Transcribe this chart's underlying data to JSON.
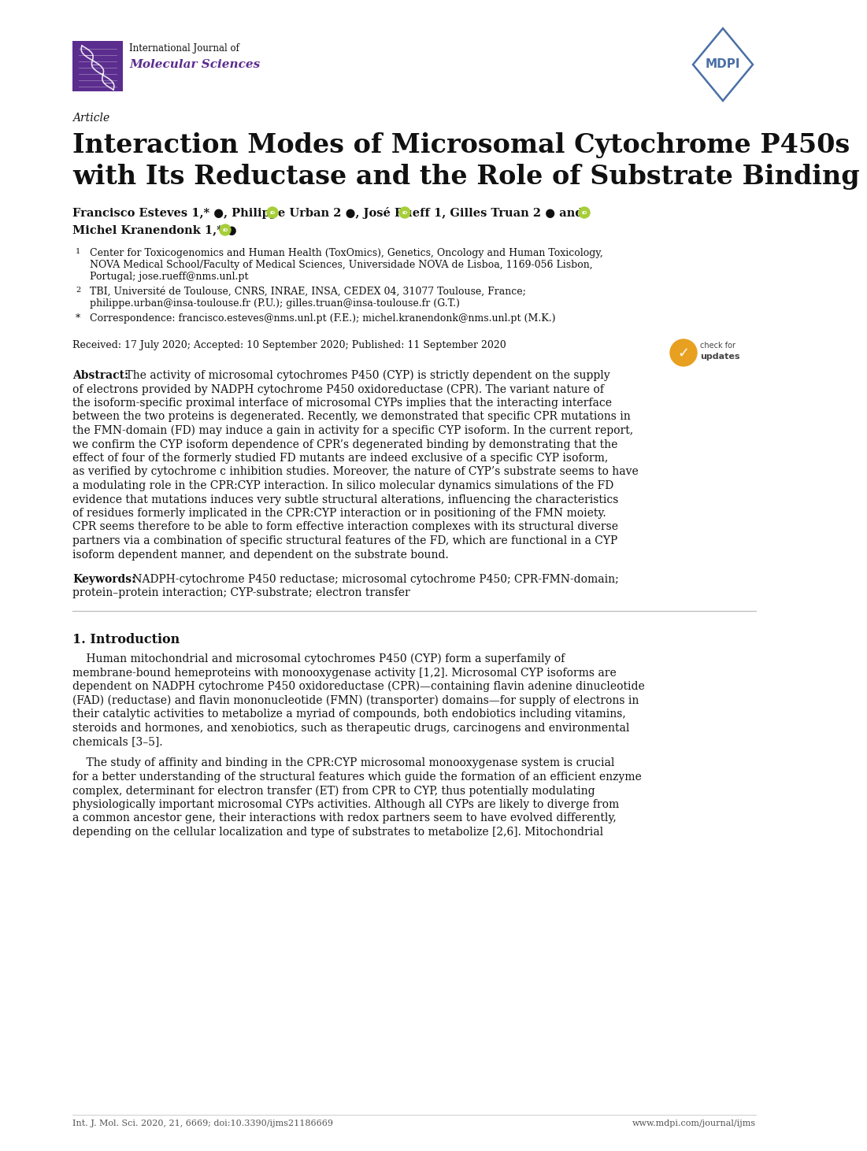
{
  "bg_color": "#ffffff",
  "page_width": 10.2,
  "page_height": 14.42,
  "journal_name_line1": "International Journal of",
  "journal_name_line2": "Molecular Sciences",
  "article_label": "Article",
  "title_line1": "Interaction Modes of Microsomal Cytochrome P450s",
  "title_line2": "with Its Reductase and the Role of Substrate Binding",
  "authors_line1": "Francisco Esteves 1,* ●, Philippe Urban 2 ●, José Rueff 1, Gilles Truan 2 ● and",
  "authors_line2": "Michel Kranendonk 1,* ●",
  "aff1_line1": "Center for Toxicogenomics and Human Health (ToxOmics), Genetics, Oncology and Human Toxicology,",
  "aff1_line2": "NOVA Medical School/Faculty of Medical Sciences, Universidade NOVA de Lisboa, 1169-056 Lisbon,",
  "aff1_line3": "Portugal; jose.rueff@nms.unl.pt",
  "aff2_line1": "TBI, Université de Toulouse, CNRS, INRAE, INSA, CEDEX 04, 31077 Toulouse, France;",
  "aff2_line2": "philippe.urban@insa-toulouse.fr (P.U.); gilles.truan@insa-toulouse.fr (G.T.)",
  "aff3_line1": "Correspondence: francisco.esteves@nms.unl.pt (F.E.); michel.kranendonk@nms.unl.pt (M.K.)",
  "received": "Received: 17 July 2020; Accepted: 10 September 2020; Published: 11 September 2020",
  "abstract_label": "Abstract:",
  "abstract_lines": [
    " The activity of microsomal cytochromes P450 (CYP) is strictly dependent on the supply",
    "of electrons provided by NADPH cytochrome P450 oxidoreductase (CPR). The variant nature of",
    "the isoform-specific proximal interface of microsomal CYPs implies that the interacting interface",
    "between the two proteins is degenerated. Recently, we demonstrated that specific CPR mutations in",
    "the FMN-domain (FD) may induce a gain in activity for a specific CYP isoform. In the current report,",
    "we confirm the CYP isoform dependence of CPR’s degenerated binding by demonstrating that the",
    "effect of four of the formerly studied FD mutants are indeed exclusive of a specific CYP isoform,",
    "as verified by cytochrome c inhibition studies. Moreover, the nature of CYP’s substrate seems to have",
    "a modulating role in the CPR:CYP interaction. In silico molecular dynamics simulations of the FD",
    "evidence that mutations induces very subtle structural alterations, influencing the characteristics",
    "of residues formerly implicated in the CPR:CYP interaction or in positioning of the FMN moiety.",
    "CPR seems therefore to be able to form effective interaction complexes with its structural diverse",
    "partners via a combination of specific structural features of the FD, which are functional in a CYP",
    "isoform dependent manner, and dependent on the substrate bound."
  ],
  "keywords_label": "Keywords:",
  "keywords_line1": " NADPH-cytochrome P450 reductase; microsomal cytochrome P450; CPR-FMN-domain;",
  "keywords_line2": "protein–protein interaction; CYP-substrate; electron transfer",
  "section1_title": "1. Introduction",
  "intro1_lines": [
    "    Human mitochondrial and microsomal cytochromes P450 (CYP) form a superfamily of",
    "membrane-bound hemeproteins with monooxygenase activity [1,2]. Microsomal CYP isoforms are",
    "dependent on NADPH cytochrome P450 oxidoreductase (CPR)—containing flavin adenine dinucleotide",
    "(FAD) (reductase) and flavin mononucleotide (FMN) (transporter) domains—for supply of electrons in",
    "their catalytic activities to metabolize a myriad of compounds, both endobiotics including vitamins,",
    "steroids and hormones, and xenobiotics, such as therapeutic drugs, carcinogens and environmental",
    "chemicals [3–5]."
  ],
  "intro2_lines": [
    "    The study of affinity and binding in the CPR:CYP microsomal monooxygenase system is crucial",
    "for a better understanding of the structural features which guide the formation of an efficient enzyme",
    "complex, determinant for electron transfer (ET) from CPR to CYP, thus potentially modulating",
    "physiologically important microsomal CYPs activities. Although all CYPs are likely to diverge from",
    "a common ancestor gene, their interactions with redox partners seem to have evolved differently,",
    "depending on the cellular localization and type of substrates to metabolize [2,6]. Mitochondrial"
  ],
  "footer_left": "Int. J. Mol. Sci. 2020, 21, 6669; doi:10.3390/ijms21186669",
  "footer_right": "www.mdpi.com/journal/ijms",
  "purple_color": "#5b2d8e",
  "orcid_color": "#a6ce39",
  "mdpi_color": "#4a6fa5",
  "text_color": "#111111",
  "badge_color": "#e8a020",
  "hr_color": "#bbbbbb",
  "footer_color": "#555555"
}
